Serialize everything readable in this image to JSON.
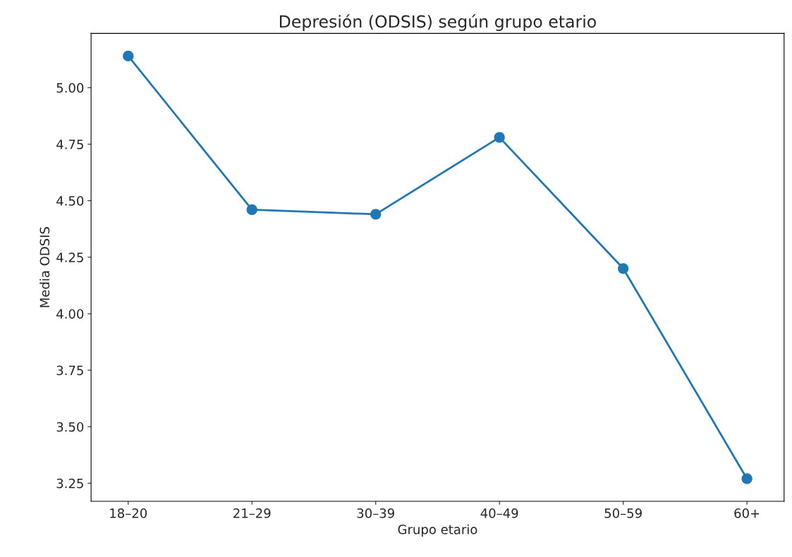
{
  "chart_data": {
    "type": "line",
    "title": "Depresión (ODSIS) según grupo etario",
    "xlabel": "Grupo etario",
    "ylabel": "Media ODSIS",
    "categories": [
      "18–20",
      "21–29",
      "30–39",
      "40–49",
      "50–59",
      "60+"
    ],
    "series": [
      {
        "color": "#1f77b4",
        "values": [
          5.14,
          4.46,
          4.44,
          4.78,
          4.2,
          3.27
        ]
      }
    ],
    "ylim": [
      3.17,
      5.24
    ],
    "yticks": [
      {
        "value": 3.25,
        "label": "3.25"
      },
      {
        "value": 3.5,
        "label": "3.50"
      },
      {
        "value": 3.75,
        "label": "3.75"
      },
      {
        "value": 4.0,
        "label": "4.00"
      },
      {
        "value": 4.25,
        "label": "4.25"
      },
      {
        "value": 4.5,
        "label": "4.50"
      },
      {
        "value": 4.75,
        "label": "4.75"
      },
      {
        "value": 5.0,
        "label": "5.00"
      }
    ],
    "grid": false,
    "marker": "circle",
    "line_style": "solid"
  }
}
